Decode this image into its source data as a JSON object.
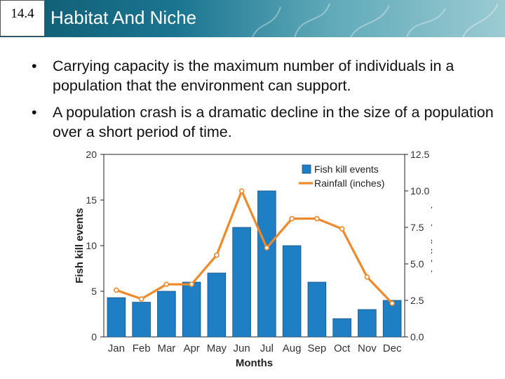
{
  "slide": {
    "section_number": "14.4",
    "title": "Habitat And Niche",
    "bullets": [
      "Carrying capacity is the maximum number of individuals in a population that the environment can support.",
      "A population crash is a dramatic decline in the size of a population over a short period of time."
    ],
    "bullet_symbol": "•"
  },
  "colors": {
    "header_dark": "#0f5a70",
    "bar": "#1f7fc4",
    "line": "#f0892b"
  },
  "chart_data": {
    "type": "bar",
    "categories": [
      "Jan",
      "Feb",
      "Mar",
      "Apr",
      "May",
      "Jun",
      "Jul",
      "Aug",
      "Sep",
      "Oct",
      "Nov",
      "Dec"
    ],
    "xlabel": "Months",
    "ylabel": "Fish kill events",
    "y2label": "Rainfall (inches)",
    "ylim": [
      0,
      20
    ],
    "y2lim": [
      0,
      12.5
    ],
    "yticks": [
      "0",
      "5",
      "10",
      "15",
      "20"
    ],
    "y2ticks": [
      "0.0",
      "2.5",
      "5.0",
      "7.5",
      "10.0",
      "12.5"
    ],
    "legend_position": "top-right",
    "series": [
      {
        "name": "Fish kill events",
        "kind": "bar",
        "axis": "left",
        "values": [
          4.3,
          3.8,
          5,
          6,
          7,
          12,
          16,
          10,
          6,
          2,
          3,
          4
        ]
      },
      {
        "name": "Rainfall (inches)",
        "kind": "line",
        "axis": "right",
        "values": [
          3.2,
          2.6,
          3.6,
          3.6,
          5.6,
          10.0,
          6.1,
          8.1,
          8.1,
          7.4,
          4.1,
          2.3
        ]
      }
    ]
  }
}
